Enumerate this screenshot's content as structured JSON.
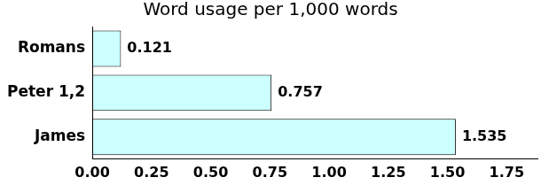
{
  "chart_data": {
    "type": "bar",
    "orientation": "horizontal",
    "title": "Word usage per 1,000 words",
    "categories": [
      "Romans",
      "Peter 1,2",
      "James"
    ],
    "values": [
      0.121,
      0.757,
      1.535
    ],
    "color": "#ccffff",
    "xlim": [
      0,
      1.88
    ],
    "xticks": [
      {
        "value": 0,
        "label": "0.00"
      },
      {
        "value": 0.25,
        "label": "0.25"
      },
      {
        "value": 0.5,
        "label": "0.50"
      },
      {
        "value": 0.75,
        "label": "0.75"
      },
      {
        "value": 1,
        "label": "1.00"
      },
      {
        "value": 1.25,
        "label": "1.25"
      },
      {
        "value": 1.5,
        "label": "1.50"
      },
      {
        "value": 1.75,
        "label": "1.75"
      }
    ],
    "grid": false,
    "data_labels": true
  }
}
